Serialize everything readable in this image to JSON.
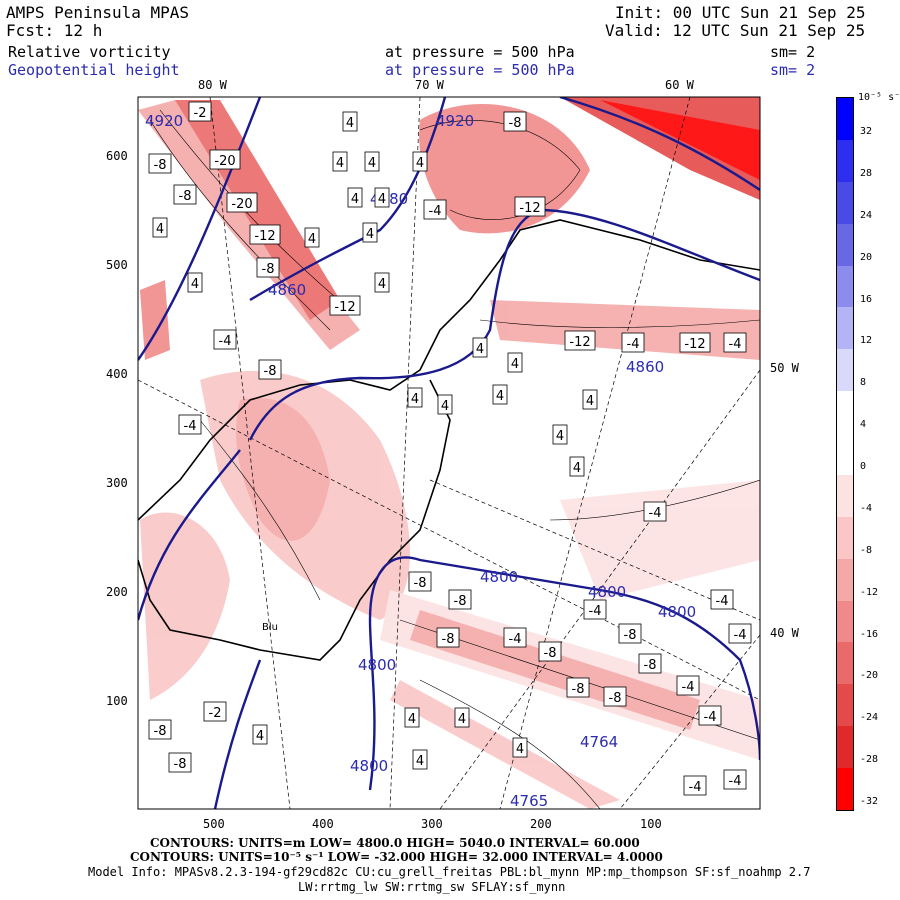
{
  "header": {
    "model_title": "AMPS Peninsula MPAS",
    "forecast": "Fcst:   12 h",
    "init": "Init: 00 UTC Sun 21 Sep 25",
    "valid": "Valid: 12 UTC Sun 21 Sep 25",
    "field1": {
      "name": "Relative vorticity",
      "level": "at pressure =  500 hPa",
      "smooth": "sm= 2"
    },
    "field2": {
      "name": "Geopotential height",
      "level": "at pressure =  500 hPa",
      "smooth": "sm= 2"
    }
  },
  "axes": {
    "x_ticks": [
      "500",
      "400",
      "300",
      "200",
      "100"
    ],
    "y_ticks": [
      "600",
      "500",
      "400",
      "300",
      "200",
      "100"
    ],
    "lon_top": [
      "80 W",
      "70 W",
      "60 W"
    ],
    "lon_right": [
      "50 W",
      "40 W"
    ]
  },
  "colorbar": {
    "unit": "10⁻⁵ s⁻¹",
    "labels": [
      "32",
      "28",
      "24",
      "20",
      "16",
      "12",
      "8",
      "4",
      "0",
      "-4",
      "-8",
      "-12",
      "-16",
      "-20",
      "-24",
      "-28",
      "-32"
    ],
    "colors": [
      "#0000ff",
      "#2e2ef0",
      "#4a4ae6",
      "#6868e6",
      "#8c8cee",
      "#b3b3f5",
      "#d9d9fb",
      "#ffffff",
      "#ffffff",
      "#fde2e2",
      "#fac6c6",
      "#f5a8a8",
      "#f08a8a",
      "#ea6a6a",
      "#e54a4a",
      "#e02a2a",
      "#ff0000"
    ]
  },
  "map": {
    "height_labels": [
      "4920",
      "4860",
      "4980",
      "4860",
      "4800",
      "4800",
      "4800",
      "4800",
      "4800",
      "4764",
      "4765",
      "4920"
    ],
    "vort_labels": [
      "-8",
      "-20",
      "-8",
      "-20",
      "-12",
      "-8",
      "-12",
      "-4",
      "-8",
      "-4",
      "-8",
      "-12",
      "-12",
      "-4",
      "-12",
      "-4",
      "-4",
      "-4",
      "-8",
      "-8",
      "-4",
      "-8",
      "-4",
      "-8",
      "-8",
      "-8",
      "-8",
      "-8",
      "-4",
      "-4",
      "-4",
      "-4",
      "-4",
      "-2",
      "-4",
      "-2",
      "-8",
      "-8",
      "4",
      "4",
      "4",
      "4",
      "4",
      "4",
      "4",
      "4",
      "4",
      "4",
      "4",
      "4",
      "4",
      "4",
      "4",
      "4",
      "4",
      "4",
      "4",
      "4",
      "4",
      "4",
      "4",
      "4"
    ],
    "station_label": "Blu"
  },
  "footer": {
    "contours1": "CONTOURS:  UNITS=m  LOW=  4800.0        HIGH=  5040.0        INTERVAL=   60.000",
    "contours2": "CONTOURS:  UNITS=10⁻⁵ s⁻¹  LOW=  -32.000        HIGH=  32.000        INTERVAL=   4.0000",
    "model_info": "Model Info: MPASv8.2.3-194-gf29cd82c CU:cu_grell_freitas PBL:bl_mynn MP:mp_thompson SF:sf_noahmp 2.7",
    "model_info2": "LW:rrtmg_lw SW:rrtmg_sw SFLAY:sf_mynn"
  }
}
